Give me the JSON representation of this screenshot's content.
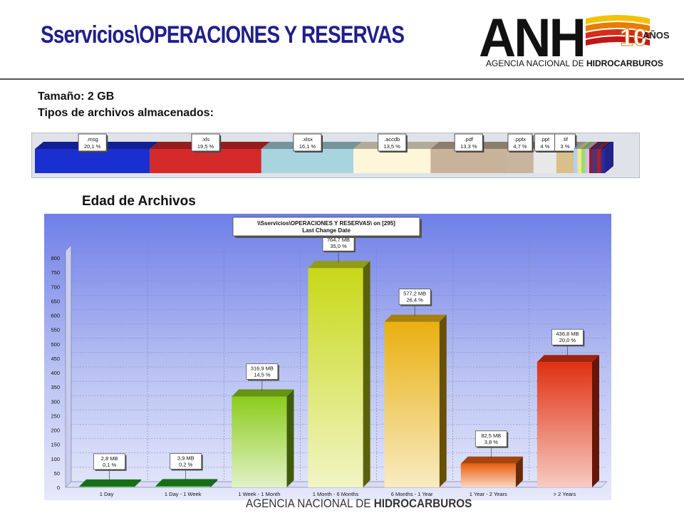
{
  "header": {
    "title": "Sservicios\\OPERACIONES  Y RESERVAS"
  },
  "logo": {
    "acronym": "ANH",
    "years": "10",
    "anos": "AÑOS",
    "subtitle_plain": "AGENCIA NACIONAL DE ",
    "subtitle_bold": "HIDROCARBUROS"
  },
  "info": {
    "size": "Tamaño: 2 GB",
    "types": "Tipos de archivos almacenados:"
  },
  "file_types": {
    "segments": [
      {
        "ext": ".msg",
        "pct": "20,1 %",
        "value": 20.1,
        "color": "#1a2fd0"
      },
      {
        "ext": ".xls",
        "pct": "19,5 %",
        "value": 19.5,
        "color": "#d42a2a"
      },
      {
        "ext": ".xlsx",
        "pct": "16,1 %",
        "value": 16.1,
        "color": "#a8d4df"
      },
      {
        "ext": ".accdb",
        "pct": "13,5 %",
        "value": 13.5,
        "color": "#fdf6d8"
      },
      {
        "ext": ".pdf",
        "pct": "13,3 %",
        "value": 13.3,
        "color": "#c8b29a"
      },
      {
        "ext": ".pptx",
        "pct": "4,7 %",
        "value": 4.7,
        "color": "#c9b59d"
      },
      {
        "ext": ".ppt",
        "pct": "4 %",
        "value": 4.0,
        "color": "#e8e8e8"
      },
      {
        "ext": ".tif",
        "pct": "3 %",
        "value": 3.0,
        "color": "#d9c08a"
      }
    ],
    "tail_colors": [
      "#b4cff0",
      "#f2e88a",
      "#9edc6a",
      "#d0c0e8",
      "#8c1e3c",
      "#3a3a8c",
      "#b02020",
      "#2b2b9a"
    ]
  },
  "section": {
    "title": "Edad de Archivos"
  },
  "chart_data": {
    "type": "bar",
    "title": "\\\\Sservicios\\OPERACIONES Y RESERVAS\\  on  [295]",
    "subtitle": "Last Change Date",
    "categories": [
      "1 Day",
      "1 Day - 1 Week",
      "1 Week - 1 Month",
      "1 Month - 6 Months",
      "6 Months - 1 Year",
      "1 Year - 2 Years",
      "> 2 Years"
    ],
    "values": [
      2.8,
      3.9,
      316.9,
      764.7,
      577.2,
      82.5,
      436.8
    ],
    "value_labels": [
      "2,8 MB",
      "3,9 MB",
      "316,9 MB",
      "764,7 MB",
      "577,2 MB",
      "82,5 MB",
      "436,8 MB"
    ],
    "percent_labels": [
      "0,1 %",
      "0,2 %",
      "14,5 %",
      "35,0 %",
      "26,4 %",
      "3,8 %",
      "20,0 %"
    ],
    "colors": [
      "#1e9a1e",
      "#1e9a1e",
      "#8ccc1c",
      "#c8d818",
      "#e8b010",
      "#e86010",
      "#e03010"
    ],
    "ylim": [
      0,
      800
    ],
    "yticks": [
      0,
      50,
      100,
      150,
      200,
      250,
      300,
      350,
      400,
      450,
      500,
      550,
      600,
      650,
      700,
      750,
      800
    ],
    "xlabel": "",
    "ylabel": "",
    "grid": true
  },
  "footer": {
    "plain": "AGENCIA NACIONAL DE ",
    "bold": "HIDROCARBUROS"
  }
}
